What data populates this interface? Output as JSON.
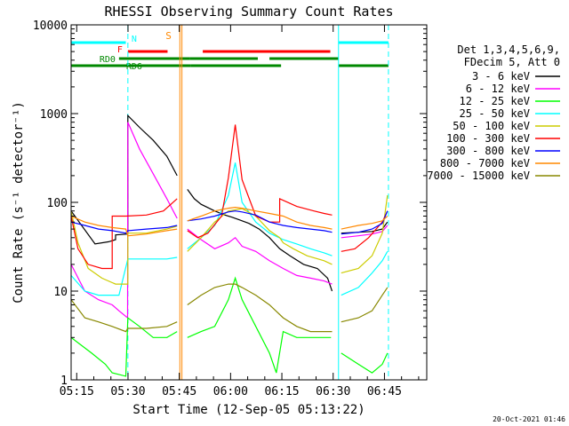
{
  "chart_data": {
    "type": "line",
    "title": "RHESSI Observing Summary Count Rates",
    "xlabel": "Start Time (12-Sep-05 05:13:22)",
    "ylabel": "Count Rate (s⁻¹ detector⁻¹)",
    "yscale": "log",
    "ylim": [
      1,
      10000
    ],
    "xlim_min": [
      0,
      104
    ],
    "x_ticks": [
      {
        "t": 1.633,
        "label": "05:15"
      },
      {
        "t": 16.633,
        "label": "05:30"
      },
      {
        "t": 31.633,
        "label": "05:45"
      },
      {
        "t": 46.633,
        "label": "06:00"
      },
      {
        "t": 61.633,
        "label": "06:15"
      },
      {
        "t": 76.633,
        "label": "06:30"
      },
      {
        "t": 91.633,
        "label": "06:45"
      }
    ],
    "y_ticks": [
      {
        "v": 1,
        "label": "1"
      },
      {
        "v": 10,
        "label": "10"
      },
      {
        "v": 100,
        "label": "100"
      },
      {
        "v": 1000,
        "label": "1000"
      },
      {
        "v": 10000,
        "label": "10000"
      }
    ],
    "legend": {
      "position": "right",
      "header": [
        "Det 1,3,4,5,6,9,",
        "FDecim 5, Att 0"
      ]
    },
    "series": [
      {
        "name": "3 - 6 keV",
        "color": "#000000",
        "values": [
          [
            0,
            80
          ],
          [
            7,
            34
          ],
          [
            11,
            36
          ],
          [
            13,
            38
          ],
          [
            13,
            43
          ],
          [
            16.6,
            44
          ],
          [
            16.6,
            950
          ],
          [
            20,
            700
          ],
          [
            24,
            500
          ],
          [
            28,
            330
          ],
          [
            31,
            200
          ],
          [
            31,
            null
          ],
          [
            34,
            140
          ],
          [
            36,
            110
          ],
          [
            38,
            95
          ],
          [
            42,
            80
          ],
          [
            45,
            72
          ],
          [
            47,
            68
          ],
          [
            49,
            64
          ],
          [
            52,
            58
          ],
          [
            55,
            50
          ],
          [
            58,
            40
          ],
          [
            61,
            30
          ],
          [
            64,
            25
          ],
          [
            68,
            20
          ],
          [
            72,
            18
          ],
          [
            75,
            14
          ],
          [
            76.3,
            10
          ],
          [
            76.3,
            null
          ],
          [
            79,
            45
          ],
          [
            84,
            46
          ],
          [
            88,
            47
          ],
          [
            91,
            50
          ],
          [
            92.5,
            60
          ]
        ]
      },
      {
        "name": "6 - 12 keV",
        "color": "#ff00ff",
        "values": [
          [
            0,
            20
          ],
          [
            4,
            10
          ],
          [
            8,
            8
          ],
          [
            12,
            7
          ],
          [
            14,
            6
          ],
          [
            16.5,
            5
          ],
          [
            16.6,
            800
          ],
          [
            20,
            400
          ],
          [
            24,
            210
          ],
          [
            28,
            110
          ],
          [
            31,
            66
          ],
          [
            31,
            null
          ],
          [
            34,
            50
          ],
          [
            38,
            38
          ],
          [
            42,
            30
          ],
          [
            46,
            35
          ],
          [
            48,
            40
          ],
          [
            50,
            32
          ],
          [
            54,
            28
          ],
          [
            58,
            22
          ],
          [
            62,
            18
          ],
          [
            66,
            15
          ],
          [
            70,
            14
          ],
          [
            74,
            13
          ],
          [
            76.3,
            12
          ],
          [
            76.3,
            null
          ],
          [
            79,
            40
          ],
          [
            84,
            42
          ],
          [
            88,
            44
          ],
          [
            91,
            47
          ],
          [
            92.5,
            55
          ]
        ]
      },
      {
        "name": "12 - 25 keV",
        "color": "#00ff00",
        "values": [
          [
            0,
            3
          ],
          [
            6,
            2
          ],
          [
            10,
            1.5
          ],
          [
            12,
            1.2
          ],
          [
            16,
            1.1
          ],
          [
            16.6,
            5
          ],
          [
            20,
            4
          ],
          [
            24,
            3
          ],
          [
            28,
            3
          ],
          [
            31,
            3.5
          ],
          [
            31,
            null
          ],
          [
            34,
            3
          ],
          [
            38,
            3.5
          ],
          [
            42,
            4
          ],
          [
            46,
            8
          ],
          [
            48,
            14
          ],
          [
            50,
            8
          ],
          [
            54,
            4
          ],
          [
            58,
            2
          ],
          [
            60,
            1.2
          ],
          [
            62,
            3.5
          ],
          [
            66,
            3
          ],
          [
            70,
            3
          ],
          [
            74,
            3
          ],
          [
            76,
            3
          ],
          [
            76.3,
            null
          ],
          [
            79,
            2
          ],
          [
            84,
            1.5
          ],
          [
            88,
            1.2
          ],
          [
            91,
            1.5
          ],
          [
            92.5,
            2
          ]
        ]
      },
      {
        "name": "25 - 50 keV",
        "color": "#00ffff",
        "values": [
          [
            0,
            15
          ],
          [
            4,
            10
          ],
          [
            8,
            9
          ],
          [
            12,
            9
          ],
          [
            14,
            9
          ],
          [
            16.6,
            23
          ],
          [
            20,
            23
          ],
          [
            24,
            23
          ],
          [
            28,
            23
          ],
          [
            31,
            24
          ],
          [
            31,
            null
          ],
          [
            34,
            30
          ],
          [
            38,
            40
          ],
          [
            42,
            55
          ],
          [
            46,
            120
          ],
          [
            48,
            280
          ],
          [
            50,
            100
          ],
          [
            54,
            60
          ],
          [
            58,
            45
          ],
          [
            62,
            38
          ],
          [
            66,
            34
          ],
          [
            70,
            30
          ],
          [
            74,
            27
          ],
          [
            76.3,
            25
          ],
          [
            76.3,
            null
          ],
          [
            79,
            9
          ],
          [
            84,
            11
          ],
          [
            88,
            16
          ],
          [
            91,
            22
          ],
          [
            92.5,
            28
          ]
        ]
      },
      {
        "name": "50 - 100 keV",
        "color": "#cccc00",
        "values": [
          [
            0,
            80
          ],
          [
            2,
            35
          ],
          [
            5,
            18
          ],
          [
            9,
            14
          ],
          [
            13,
            12
          ],
          [
            16.6,
            12
          ],
          [
            16.6,
            45
          ],
          [
            22,
            45
          ],
          [
            28,
            50
          ],
          [
            31,
            54
          ],
          [
            31,
            null
          ],
          [
            34,
            28
          ],
          [
            38,
            40
          ],
          [
            42,
            60
          ],
          [
            46,
            80
          ],
          [
            50,
            85
          ],
          [
            54,
            70
          ],
          [
            58,
            48
          ],
          [
            61,
            40
          ],
          [
            62,
            35
          ],
          [
            65,
            30
          ],
          [
            69,
            25
          ],
          [
            74,
            22
          ],
          [
            76.3,
            20
          ],
          [
            76.3,
            null
          ],
          [
            79,
            16
          ],
          [
            84,
            18
          ],
          [
            88,
            25
          ],
          [
            91,
            45
          ],
          [
            92.5,
            120
          ]
        ]
      },
      {
        "name": "100 - 300 keV",
        "color": "#ff0000",
        "values": [
          [
            0,
            70
          ],
          [
            2,
            30
          ],
          [
            5,
            20
          ],
          [
            9,
            18
          ],
          [
            12,
            18
          ],
          [
            12,
            70
          ],
          [
            16,
            70
          ],
          [
            22,
            72
          ],
          [
            27,
            80
          ],
          [
            31,
            110
          ],
          [
            31,
            null
          ],
          [
            34,
            48
          ],
          [
            37,
            40
          ],
          [
            40,
            45
          ],
          [
            44,
            70
          ],
          [
            46,
            190
          ],
          [
            48,
            750
          ],
          [
            50,
            180
          ],
          [
            54,
            70
          ],
          [
            58,
            60
          ],
          [
            61,
            60
          ],
          [
            61,
            110
          ],
          [
            66,
            90
          ],
          [
            71,
            80
          ],
          [
            74,
            75
          ],
          [
            76.3,
            72
          ],
          [
            76.3,
            null
          ],
          [
            79,
            28
          ],
          [
            83,
            30
          ],
          [
            87,
            40
          ],
          [
            91,
            60
          ],
          [
            92.5,
            80
          ]
        ]
      },
      {
        "name": "300 - 800 keV",
        "color": "#0000ff",
        "values": [
          [
            0,
            60
          ],
          [
            4,
            55
          ],
          [
            8,
            50
          ],
          [
            12,
            48
          ],
          [
            16,
            45
          ],
          [
            16.6,
            48
          ],
          [
            22,
            50
          ],
          [
            28,
            52
          ],
          [
            31,
            55
          ],
          [
            31,
            null
          ],
          [
            34,
            62
          ],
          [
            38,
            65
          ],
          [
            42,
            70
          ],
          [
            46,
            78
          ],
          [
            48,
            80
          ],
          [
            50,
            78
          ],
          [
            54,
            72
          ],
          [
            58,
            60
          ],
          [
            62,
            55
          ],
          [
            66,
            52
          ],
          [
            70,
            50
          ],
          [
            74,
            48
          ],
          [
            76.3,
            46
          ],
          [
            76.3,
            null
          ],
          [
            79,
            44
          ],
          [
            84,
            46
          ],
          [
            88,
            50
          ],
          [
            91,
            58
          ],
          [
            92.5,
            80
          ]
        ]
      },
      {
        "name": "800 - 7000 keV",
        "color": "#ff8800",
        "values": [
          [
            0,
            70
          ],
          [
            4,
            60
          ],
          [
            8,
            55
          ],
          [
            12,
            52
          ],
          [
            16,
            50
          ],
          [
            16.6,
            42
          ],
          [
            22,
            44
          ],
          [
            28,
            48
          ],
          [
            31,
            50
          ],
          [
            31,
            null
          ],
          [
            34,
            62
          ],
          [
            38,
            70
          ],
          [
            42,
            80
          ],
          [
            46,
            86
          ],
          [
            48,
            88
          ],
          [
            50,
            86
          ],
          [
            54,
            80
          ],
          [
            58,
            75
          ],
          [
            62,
            70
          ],
          [
            66,
            60
          ],
          [
            70,
            55
          ],
          [
            74,
            52
          ],
          [
            76.3,
            50
          ],
          [
            76.3,
            null
          ],
          [
            79,
            50
          ],
          [
            84,
            55
          ],
          [
            88,
            58
          ],
          [
            91,
            62
          ],
          [
            92.5,
            70
          ]
        ]
      },
      {
        "name": "7000 - 15000 keV",
        "color": "#888800",
        "values": [
          [
            0,
            8
          ],
          [
            4,
            5
          ],
          [
            8,
            4.5
          ],
          [
            12,
            4
          ],
          [
            16,
            3.5
          ],
          [
            16.6,
            3.8
          ],
          [
            22,
            3.8
          ],
          [
            28,
            4
          ],
          [
            31,
            4.5
          ],
          [
            31,
            null
          ],
          [
            34,
            7
          ],
          [
            38,
            9
          ],
          [
            42,
            11
          ],
          [
            46,
            12
          ],
          [
            48,
            12
          ],
          [
            50,
            11
          ],
          [
            54,
            9
          ],
          [
            58,
            7
          ],
          [
            62,
            5
          ],
          [
            66,
            4
          ],
          [
            70,
            3.5
          ],
          [
            74,
            3.5
          ],
          [
            76.3,
            3.5
          ],
          [
            76.3,
            null
          ],
          [
            79,
            4.5
          ],
          [
            84,
            5
          ],
          [
            88,
            6
          ],
          [
            91,
            9
          ],
          [
            92.5,
            11
          ]
        ]
      }
    ],
    "annotations": {
      "vlines": [
        {
          "t": 16.6,
          "color": "#00ffff",
          "style": "dash"
        },
        {
          "t": 31.8,
          "color": "#ff8800",
          "style": "solid"
        },
        {
          "t": 32.4,
          "color": "#ff8800",
          "style": "solid"
        },
        {
          "t": 78.2,
          "color": "#00ffff",
          "style": "solid"
        },
        {
          "t": 92.8,
          "color": "#00ffff",
          "style": "dash"
        }
      ],
      "flag_bars": [
        {
          "label": "N",
          "color": "#00ffff",
          "level": 1,
          "segments": [
            [
              0,
              16
            ],
            [
              78.2,
              92.8
            ]
          ]
        },
        {
          "label": "F",
          "color": "#ff0000",
          "level": 2,
          "segments": [
            [
              16.6,
              28.2
            ],
            [
              38.5,
              75.8
            ]
          ]
        },
        {
          "label": "RD0",
          "color": "#008800",
          "level": 3,
          "segments": [
            [
              14,
              34.6
            ],
            [
              34.6,
              34.6
            ],
            [
              34.6,
              54.6
            ],
            [
              58,
              78.2
            ]
          ]
        },
        {
          "label": "RD6",
          "color": "#008800",
          "level": 4,
          "segments": [
            [
              0,
              35
            ],
            [
              35,
              61.4
            ],
            [
              78.2,
              92.8
            ]
          ]
        }
      ],
      "s_label": "S",
      "timestamp": "20-Oct-2021 01:46"
    }
  }
}
